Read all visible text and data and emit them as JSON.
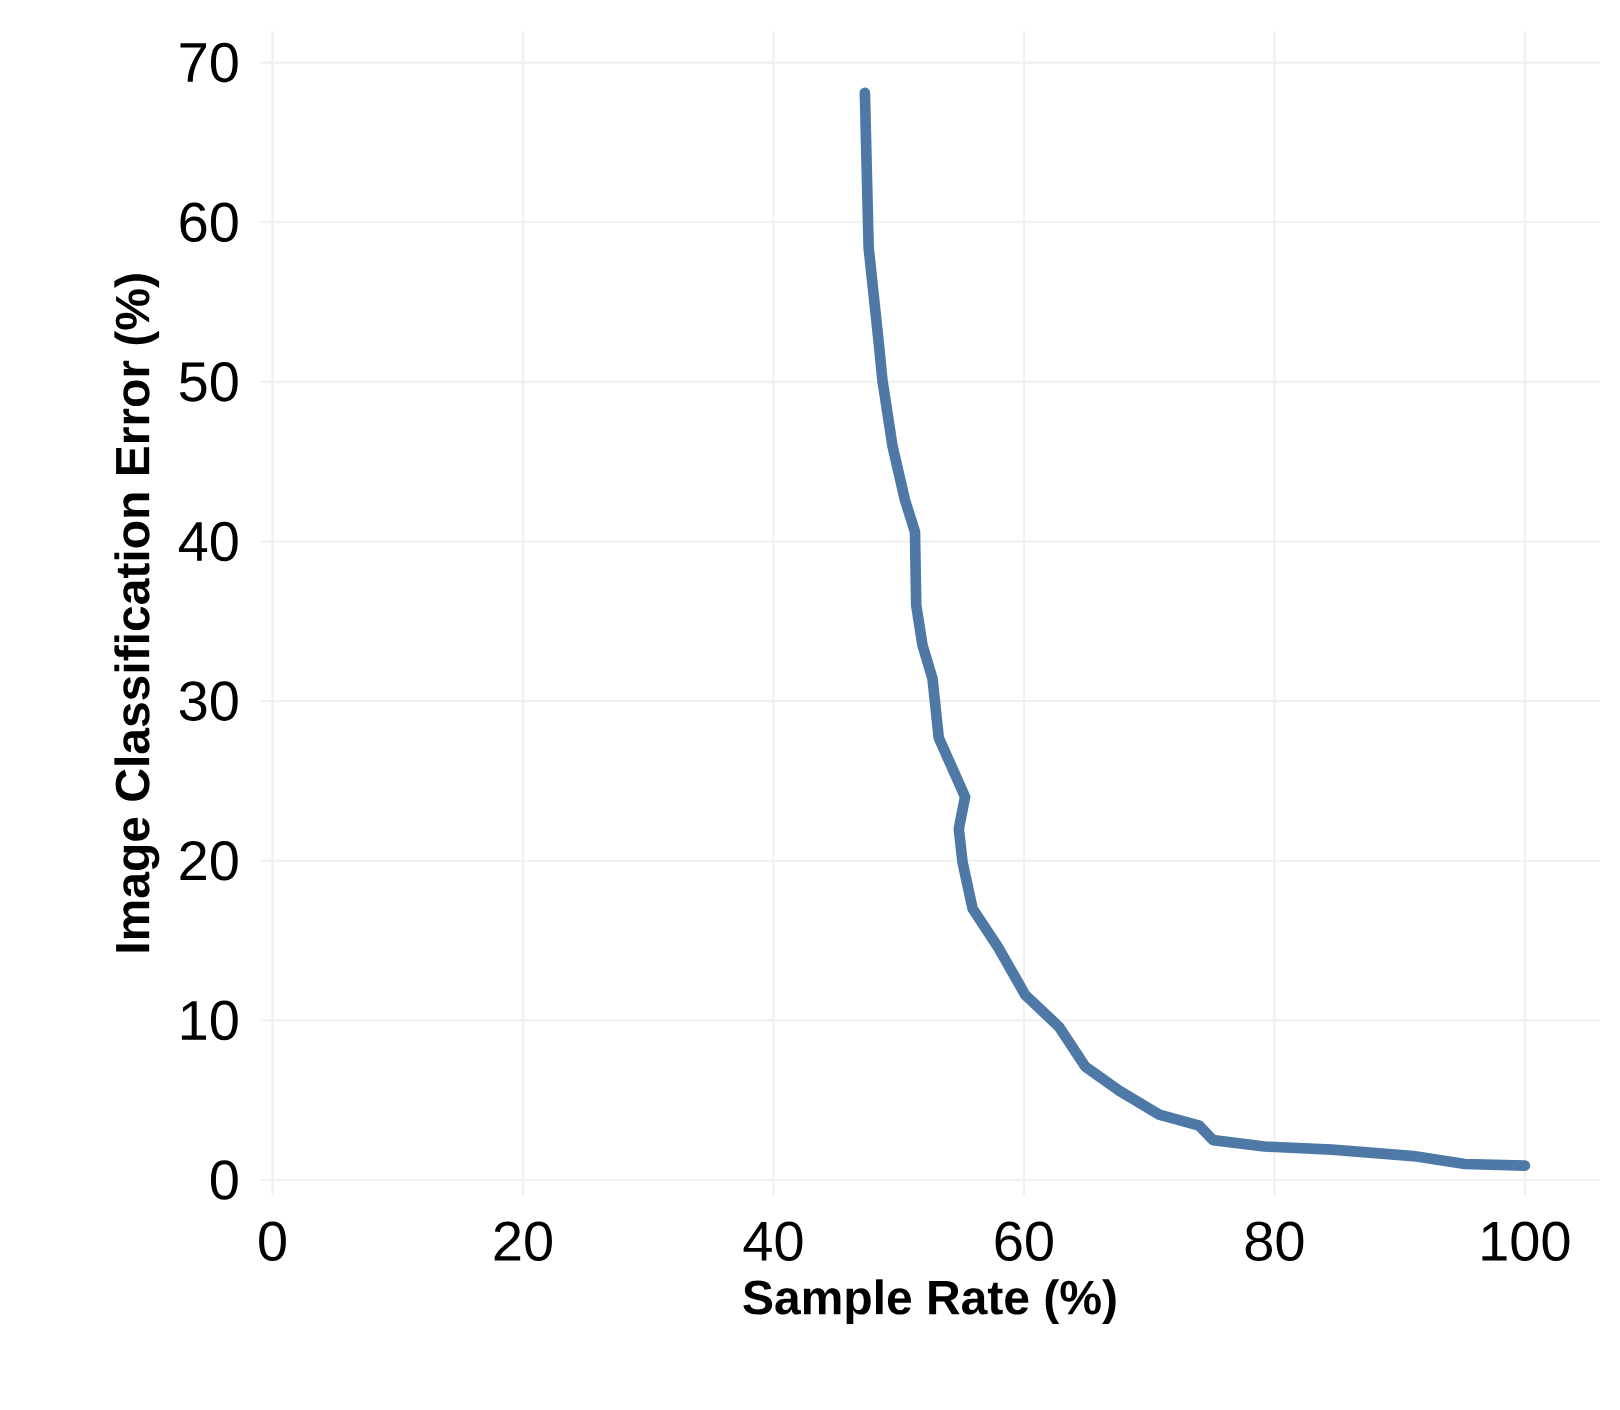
{
  "chart_data": {
    "type": "line",
    "xlabel": "Sample Rate (%)",
    "ylabel": "Image Classification Error (%)",
    "x": [
      47.3,
      47.6,
      48.4,
      48.7,
      49.5,
      50.5,
      51.3,
      51.4,
      51.9,
      52.7,
      53.2,
      55.3,
      54.8,
      55.1,
      55.9,
      58.0,
      60.1,
      62.8,
      64.9,
      67.6,
      70.8,
      74.0,
      75.1,
      79.2,
      84.6,
      91.1,
      95.2,
      100
    ],
    "series": [
      {
        "color": "#4e79a7",
        "values": [
          68.1,
          58.4,
          52.5,
          50.1,
          46.0,
          42.6,
          40.6,
          36.0,
          33.5,
          31.4,
          27.7,
          24.0,
          22.0,
          19.9,
          17.0,
          14.5,
          11.6,
          9.6,
          7.1,
          5.6,
          4.1,
          3.4,
          2.5,
          2.1,
          1.9,
          1.5,
          1.0,
          0.9
        ]
      }
    ],
    "xlim": [
      -1,
      106
    ],
    "ylim": [
      -1,
      72
    ],
    "xticks": [
      0,
      20,
      40,
      60,
      80,
      100
    ],
    "yticks": [
      0,
      10,
      20,
      30,
      40,
      50,
      60,
      70
    ],
    "grid": true
  }
}
